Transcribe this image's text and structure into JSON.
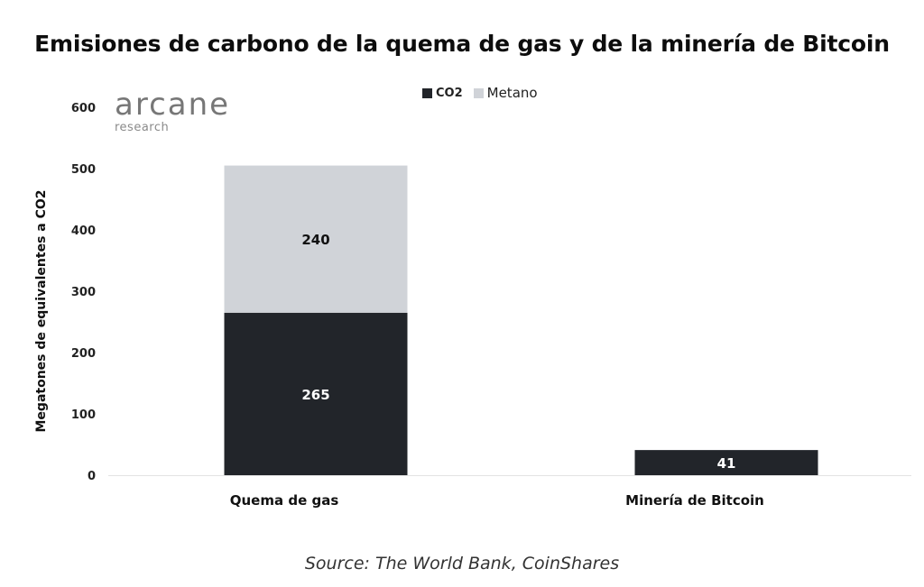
{
  "chart_data": {
    "type": "bar",
    "stacked": true,
    "title": "Emisiones de carbono de la quema de gas y de la minería de Bitcoin",
    "ylabel": "Megatones de equivalentes a CO2",
    "xlabel": "",
    "categories": [
      "Quema de gas",
      "Minería de Bitcoin"
    ],
    "series": [
      {
        "name": "CO2",
        "values": [
          265,
          41
        ],
        "color": "#22252a",
        "label_color": "#ffffff"
      },
      {
        "name": "Metano",
        "values": [
          240,
          0
        ],
        "color": "#d0d3d8",
        "label_color": "#111111"
      }
    ],
    "ylim": [
      0,
      600
    ],
    "yticks": [
      0,
      100,
      200,
      300,
      400,
      500,
      600
    ],
    "grid": false,
    "legend_position": "top-center"
  },
  "brand": {
    "name": "arcane",
    "sub": "research"
  },
  "source": {
    "prefix": "Source",
    "text": ": The World Bank, CoinShares"
  }
}
